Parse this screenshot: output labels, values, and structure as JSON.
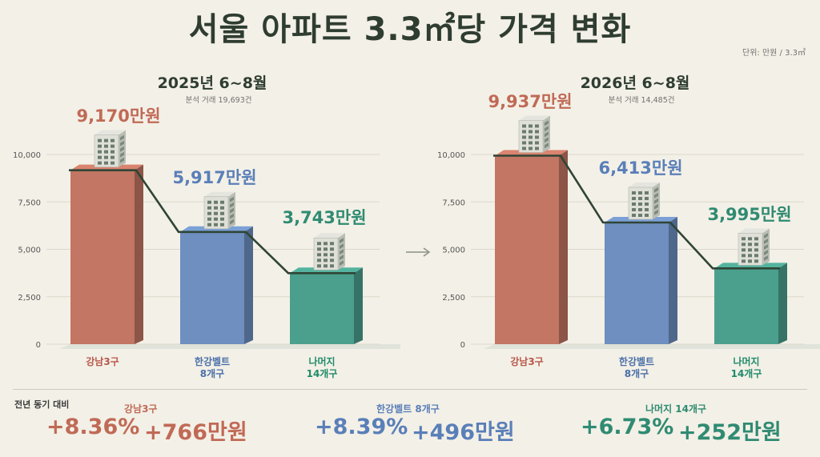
{
  "title": "서울 아파트 3.3㎡당 가격 변화",
  "unit": "단위: 만원 / 3.3㎡",
  "colors": {
    "gangnam": "#c27663",
    "hangang": "#6e8fbf",
    "rest": "#4ba08d",
    "text_dark": "#2f3d31"
  },
  "chart_data": [
    {
      "type": "bar",
      "title": "2025년 6~8월",
      "subtitle": "분석 거래 19,693건",
      "categories": [
        "강남3구",
        "한강벨트\n8개구",
        "나머지\n14개구"
      ],
      "values": [
        9170,
        5917,
        3743
      ],
      "value_labels": [
        "9,170만원",
        "5,917만원",
        "3,743만원"
      ],
      "ylim": [
        0,
        10000
      ],
      "yticks": [
        "0",
        "2,500",
        "5,000",
        "7,500",
        "10,000"
      ],
      "grid": true
    },
    {
      "type": "bar",
      "title": "2026년 6~8월",
      "subtitle": "분석 거래 14,485건",
      "categories": [
        "강남3구",
        "한강벨트\n8개구",
        "나머지\n14개구"
      ],
      "values": [
        9937,
        6413,
        3995
      ],
      "value_labels": [
        "9,937만원",
        "6,413만원",
        "3,995만원"
      ],
      "ylim": [
        0,
        10000
      ],
      "yticks": [
        "0",
        "2,500",
        "5,000",
        "7,500",
        "10,000"
      ],
      "grid": true
    }
  ],
  "yoy": {
    "label": "전년 동기 대비",
    "groups": [
      {
        "name": "강남3구",
        "pct": "+8.36%",
        "amount": "+766만원"
      },
      {
        "name": "한강벨트 8개구",
        "pct": "+8.39%",
        "amount": "+496만원"
      },
      {
        "name": "나머지 14개구",
        "pct": "+6.73%",
        "amount": "+252만원"
      }
    ]
  }
}
